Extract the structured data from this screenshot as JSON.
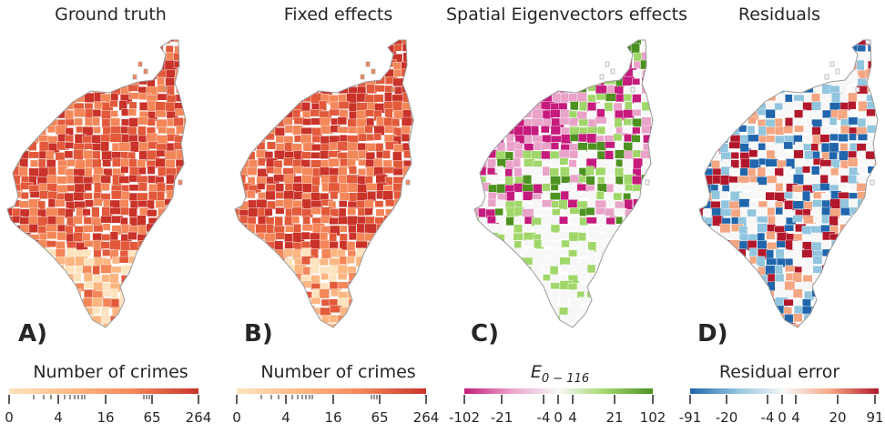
{
  "panels": [
    {
      "title": "Ground truth",
      "letter": "A)",
      "colorbar_label": "Number of crimes",
      "ticks": [
        "0",
        "4",
        "16",
        "65",
        "264"
      ],
      "palette": [
        "#fde3be",
        "#fcb681",
        "#f4875a",
        "#e25a3b",
        "#c9332a"
      ],
      "cell_scheme": "sequential-oranges"
    },
    {
      "title": "Fixed effects",
      "letter": "B)",
      "colorbar_label": "Number of crimes",
      "ticks": [
        "0",
        "4",
        "16",
        "65",
        "264"
      ],
      "palette": [
        "#fde3be",
        "#fcb681",
        "#f4875a",
        "#e25a3b",
        "#c9332a"
      ],
      "cell_scheme": "sequential-oranges"
    },
    {
      "title": "Spatial Eigenvectors effects",
      "letter": "C)",
      "colorbar_label": "E",
      "colorbar_sub": "0 − 116",
      "ticks": [
        "-102",
        "-21",
        "-4",
        "0",
        "4",
        "21",
        "102"
      ],
      "palette": [
        "#c51b7d",
        "#e9a3c9",
        "#f7f7f7",
        "#a1d76a",
        "#4d9221"
      ],
      "cell_scheme": "diverging-pink-green"
    },
    {
      "title": "Residuals",
      "letter": "D)",
      "colorbar_label": "Residual error",
      "ticks": [
        "-91",
        "-20",
        "-4",
        "0",
        "4",
        "20",
        "91"
      ],
      "palette": [
        "#2166ac",
        "#92c5de",
        "#f7f7f7",
        "#f4a582",
        "#b2182b"
      ],
      "cell_scheme": "diverging-blue-red"
    }
  ]
}
